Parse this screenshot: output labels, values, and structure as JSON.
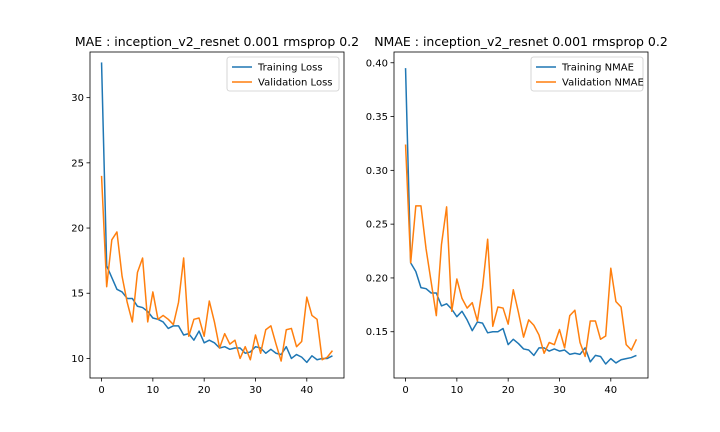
{
  "chart_data": [
    {
      "type": "line",
      "title": "MAE : inception_v2_resnet 0.001 rmsprop 0.2",
      "xlabel": "",
      "ylabel": "",
      "xlim": [
        -2.25,
        47.25
      ],
      "ylim": [
        8.5,
        33.5
      ],
      "xticks": [
        0,
        10,
        20,
        30,
        40
      ],
      "yticks": [
        10,
        15,
        20,
        25,
        30
      ],
      "legend": "top-right",
      "grid": false,
      "x": [
        0,
        1,
        2,
        3,
        4,
        5,
        6,
        7,
        8,
        9,
        10,
        11,
        12,
        13,
        14,
        15,
        16,
        17,
        18,
        19,
        20,
        21,
        22,
        23,
        24,
        25,
        26,
        27,
        28,
        29,
        30,
        31,
        32,
        33,
        34,
        35,
        36,
        37,
        38,
        39,
        40,
        41,
        42,
        43,
        44,
        45
      ],
      "series": [
        {
          "name": "Training Loss",
          "color": "#1f77b4",
          "values": [
            32.7,
            17.1,
            16.2,
            15.3,
            15.1,
            14.6,
            14.6,
            14.0,
            13.9,
            13.6,
            13.1,
            13.0,
            12.8,
            12.3,
            12.5,
            12.5,
            11.8,
            11.9,
            11.4,
            12.1,
            11.2,
            11.4,
            11.2,
            10.8,
            10.9,
            10.7,
            10.8,
            10.8,
            10.4,
            10.5,
            10.9,
            10.8,
            10.4,
            10.7,
            10.4,
            10.3,
            10.9,
            10.0,
            10.3,
            10.1,
            9.7,
            10.2,
            9.9,
            10.0,
            10.0,
            10.2
          ]
        },
        {
          "name": "Validation Loss",
          "color": "#ff7f0e",
          "values": [
            24.0,
            15.5,
            19.1,
            19.7,
            16.3,
            14.3,
            12.8,
            16.6,
            17.7,
            12.8,
            15.1,
            13.0,
            13.3,
            13.0,
            12.6,
            14.3,
            17.7,
            11.7,
            13.0,
            13.1,
            11.7,
            14.4,
            12.8,
            10.8,
            11.9,
            11.1,
            11.4,
            10.0,
            10.9,
            9.9,
            11.8,
            10.4,
            12.2,
            12.5,
            11.1,
            9.8,
            12.2,
            12.3,
            10.9,
            11.3,
            14.7,
            13.3,
            13.0,
            9.9,
            10.1,
            10.6
          ]
        }
      ]
    },
    {
      "type": "line",
      "title": "NMAE : inception_v2_resnet 0.001 rmsprop 0.2",
      "xlabel": "",
      "ylabel": "",
      "xlim": [
        -2.25,
        47.25
      ],
      "ylim": [
        0.107,
        0.41
      ],
      "xticks": [
        0,
        10,
        20,
        30,
        40
      ],
      "yticks": [
        0.15,
        0.2,
        0.25,
        0.3,
        0.35,
        0.4
      ],
      "ytick_labels": [
        "0.15",
        "0.20",
        "0.25",
        "0.30",
        "0.35",
        "0.40"
      ],
      "legend": "top-right",
      "grid": false,
      "x": [
        0,
        1,
        2,
        3,
        4,
        5,
        6,
        7,
        8,
        9,
        10,
        11,
        12,
        13,
        14,
        15,
        16,
        17,
        18,
        19,
        20,
        21,
        22,
        23,
        24,
        25,
        26,
        27,
        28,
        29,
        30,
        31,
        32,
        33,
        34,
        35,
        36,
        37,
        38,
        39,
        40,
        41,
        42,
        43,
        44,
        45
      ],
      "series": [
        {
          "name": "Training NMAE",
          "color": "#1f77b4",
          "values": [
            0.395,
            0.214,
            0.206,
            0.191,
            0.19,
            0.186,
            0.186,
            0.174,
            0.176,
            0.171,
            0.164,
            0.169,
            0.161,
            0.151,
            0.159,
            0.158,
            0.149,
            0.15,
            0.15,
            0.153,
            0.138,
            0.143,
            0.139,
            0.134,
            0.133,
            0.128,
            0.135,
            0.135,
            0.132,
            0.134,
            0.132,
            0.133,
            0.129,
            0.13,
            0.129,
            0.135,
            0.122,
            0.128,
            0.127,
            0.12,
            0.125,
            0.121,
            0.124,
            0.125,
            0.126,
            0.128
          ]
        },
        {
          "name": "Validation NMAE",
          "color": "#ff7f0e",
          "values": [
            0.324,
            0.214,
            0.267,
            0.267,
            0.227,
            0.196,
            0.165,
            0.231,
            0.266,
            0.169,
            0.199,
            0.181,
            0.172,
            0.177,
            0.16,
            0.191,
            0.236,
            0.155,
            0.173,
            0.172,
            0.157,
            0.189,
            0.168,
            0.145,
            0.161,
            0.156,
            0.147,
            0.13,
            0.14,
            0.138,
            0.152,
            0.135,
            0.165,
            0.17,
            0.14,
            0.127,
            0.16,
            0.16,
            0.143,
            0.146,
            0.209,
            0.178,
            0.173,
            0.138,
            0.133,
            0.143
          ]
        }
      ]
    }
  ]
}
